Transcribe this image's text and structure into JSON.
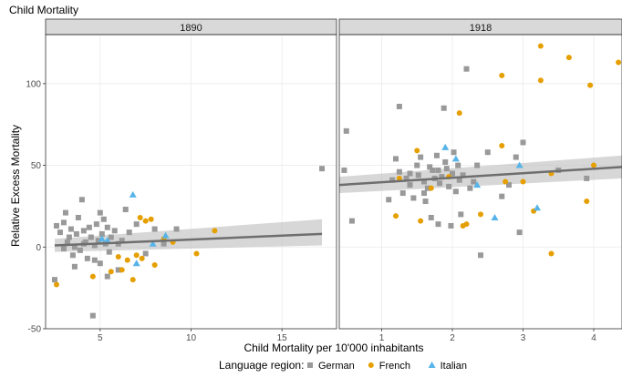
{
  "chart_data": {
    "type": "scatter",
    "title": "Child Mortality",
    "xlabel": "Child Mortality per 10'000 inhabitants",
    "ylabel": "Relative Excess Mortality",
    "ylim": [
      -50,
      130
    ],
    "yticks": [
      -50,
      0,
      50,
      100
    ],
    "legend": {
      "title": "Language region:",
      "placement": "bottom",
      "entries": [
        {
          "name": "German",
          "color": "#999999",
          "shape": "square"
        },
        {
          "name": "French",
          "color": "#E69F00",
          "shape": "circle"
        },
        {
          "name": "Italian",
          "color": "#56B4E9",
          "shape": "triangle"
        }
      ]
    },
    "grid": true,
    "panels": [
      {
        "label": "1890",
        "xlim": [
          2,
          18
        ],
        "xticks": [
          5,
          10,
          15
        ],
        "trend": {
          "x": [
            2.5,
            17.2
          ],
          "y": [
            1,
            8
          ],
          "band_low": [
            -3,
            1
          ],
          "band_high": [
            5,
            17
          ]
        },
        "series": [
          {
            "name": "German",
            "points": [
              [
                2.5,
                -20
              ],
              [
                2.6,
                13
              ],
              [
                2.8,
                9
              ],
              [
                3.0,
                15
              ],
              [
                3.1,
                21
              ],
              [
                3.2,
                3
              ],
              [
                3.3,
                6
              ],
              [
                3.4,
                11
              ],
              [
                3.5,
                -5
              ],
              [
                3.6,
                -12
              ],
              [
                3.7,
                8
              ],
              [
                3.8,
                18
              ],
              [
                3.9,
                -2
              ],
              [
                4.0,
                29
              ],
              [
                4.1,
                10
              ],
              [
                4.2,
                3
              ],
              [
                4.3,
                -7
              ],
              [
                4.4,
                12
              ],
              [
                4.5,
                6
              ],
              [
                4.6,
                -42
              ],
              [
                4.7,
                1
              ],
              [
                4.8,
                14
              ],
              [
                4.9,
                4
              ],
              [
                5.0,
                21
              ],
              [
                5.0,
                -10
              ],
              [
                5.1,
                8
              ],
              [
                5.2,
                17
              ],
              [
                5.3,
                2
              ],
              [
                5.4,
                12
              ],
              [
                5.5,
                -3
              ],
              [
                5.6,
                6
              ],
              [
                5.8,
                10
              ],
              [
                6.0,
                -14
              ],
              [
                6.2,
                4
              ],
              [
                6.4,
                23
              ],
              [
                6.6,
                9
              ],
              [
                7.0,
                14
              ],
              [
                7.5,
                -4
              ],
              [
                8.0,
                11
              ],
              [
                8.5,
                2
              ],
              [
                9.2,
                11
              ],
              [
                17.2,
                48
              ],
              [
                3.0,
                -1
              ],
              [
                3.6,
                0
              ],
              [
                4.1,
                2
              ],
              [
                4.7,
                -8
              ],
              [
                5.4,
                -18
              ],
              [
                6.0,
                2
              ]
            ]
          },
          {
            "name": "French",
            "points": [
              [
                2.6,
                -23
              ],
              [
                4.6,
                -18
              ],
              [
                5.6,
                -15
              ],
              [
                6.0,
                -6
              ],
              [
                6.2,
                -14
              ],
              [
                6.5,
                -8
              ],
              [
                6.8,
                -20
              ],
              [
                7.0,
                -5
              ],
              [
                7.2,
                18
              ],
              [
                7.5,
                16
              ],
              [
                7.8,
                17
              ],
              [
                8.0,
                -11
              ],
              [
                8.5,
                5
              ],
              [
                9.0,
                3
              ],
              [
                10.3,
                -4
              ],
              [
                11.3,
                10
              ],
              [
                7.3,
                -7
              ]
            ]
          },
          {
            "name": "Italian",
            "points": [
              [
                5.1,
                5
              ],
              [
                5.4,
                4
              ],
              [
                6.8,
                32
              ],
              [
                7.0,
                -10
              ],
              [
                7.9,
                2
              ],
              [
                8.6,
                7
              ]
            ]
          }
        ]
      },
      {
        "label": "1918",
        "xlim": [
          0.4,
          4.4
        ],
        "xticks": [
          1,
          2,
          3,
          4
        ],
        "trend": {
          "x": [
            0.4,
            4.4
          ],
          "y": [
            38,
            49
          ],
          "band_low": [
            33,
            42
          ],
          "band_high": [
            43,
            56
          ]
        },
        "series": [
          {
            "name": "German",
            "points": [
              [
                0.47,
                47
              ],
              [
                0.5,
                71
              ],
              [
                0.58,
                16
              ],
              [
                1.1,
                29
              ],
              [
                1.15,
                41
              ],
              [
                1.2,
                54
              ],
              [
                1.25,
                46
              ],
              [
                1.3,
                33
              ],
              [
                1.35,
                42
              ],
              [
                1.4,
                38
              ],
              [
                1.45,
                30
              ],
              [
                1.5,
                50
              ],
              [
                1.52,
                44
              ],
              [
                1.55,
                55
              ],
              [
                1.6,
                40
              ],
              [
                1.62,
                28
              ],
              [
                1.65,
                36
              ],
              [
                1.68,
                49
              ],
              [
                1.7,
                18
              ],
              [
                1.72,
                47
              ],
              [
                1.75,
                42
              ],
              [
                1.78,
                56
              ],
              [
                1.8,
                14
              ],
              [
                1.82,
                39
              ],
              [
                1.85,
                43
              ],
              [
                1.88,
                85
              ],
              [
                1.9,
                52
              ],
              [
                1.92,
                48
              ],
              [
                1.95,
                37
              ],
              [
                1.98,
                13
              ],
              [
                2.0,
                45
              ],
              [
                2.02,
                58
              ],
              [
                2.05,
                34
              ],
              [
                2.08,
                50
              ],
              [
                2.1,
                41
              ],
              [
                2.12,
                20
              ],
              [
                2.15,
                44
              ],
              [
                2.2,
                109
              ],
              [
                2.25,
                36
              ],
              [
                2.3,
                40
              ],
              [
                2.35,
                50
              ],
              [
                2.4,
                -5
              ],
              [
                2.5,
                58
              ],
              [
                2.7,
                31
              ],
              [
                2.8,
                38
              ],
              [
                2.9,
                55
              ],
              [
                3.0,
                64
              ],
              [
                2.95,
                9
              ],
              [
                3.5,
                47
              ],
              [
                3.9,
                42
              ],
              [
                1.25,
                86
              ],
              [
                1.4,
                45
              ],
              [
                1.6,
                33
              ],
              [
                1.8,
                47
              ]
            ]
          },
          {
            "name": "French",
            "points": [
              [
                1.2,
                19
              ],
              [
                1.25,
                42
              ],
              [
                1.5,
                59
              ],
              [
                1.55,
                16
              ],
              [
                1.7,
                36
              ],
              [
                1.95,
                43
              ],
              [
                2.1,
                82
              ],
              [
                2.15,
                13
              ],
              [
                2.4,
                20
              ],
              [
                2.7,
                105
              ],
              [
                2.7,
                62
              ],
              [
                2.75,
                40
              ],
              [
                3.0,
                40
              ],
              [
                3.15,
                22
              ],
              [
                3.25,
                123
              ],
              [
                3.25,
                102
              ],
              [
                3.4,
                45
              ],
              [
                3.4,
                -4
              ],
              [
                3.65,
                116
              ],
              [
                3.95,
                99
              ],
              [
                3.9,
                28
              ],
              [
                4.0,
                50
              ],
              [
                4.35,
                113
              ],
              [
                2.2,
                14
              ]
            ]
          },
          {
            "name": "Italian",
            "points": [
              [
                1.9,
                61
              ],
              [
                2.05,
                54
              ],
              [
                2.35,
                38
              ],
              [
                2.6,
                18
              ],
              [
                2.95,
                50
              ],
              [
                3.2,
                24
              ]
            ]
          }
        ]
      }
    ]
  }
}
